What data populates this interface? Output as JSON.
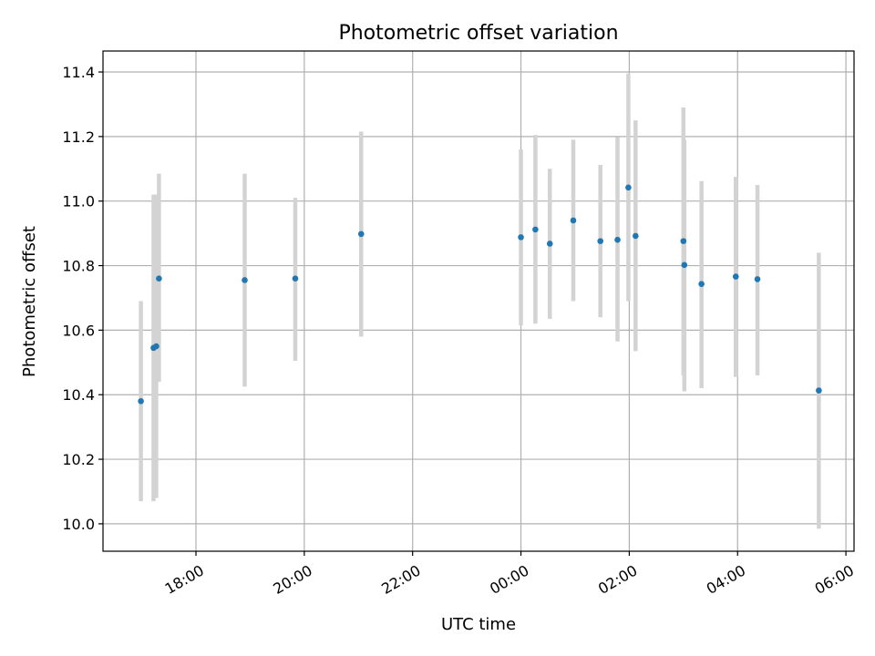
{
  "chart_data": {
    "type": "scatter",
    "title": "Photometric offset variation",
    "xlabel": "UTC time",
    "ylabel": "Photometric offset",
    "x_axis": {
      "kind": "time",
      "range": [
        "2000-01-01T16:17",
        "2000-01-02T06:09"
      ],
      "ticks": [
        {
          "value": "2000-01-01T18:00",
          "label": "18:00"
        },
        {
          "value": "2000-01-01T20:00",
          "label": "20:00"
        },
        {
          "value": "2000-01-01T22:00",
          "label": "22:00"
        },
        {
          "value": "2000-01-02T00:00",
          "label": "00:00"
        },
        {
          "value": "2000-01-02T02:00",
          "label": "02:00"
        },
        {
          "value": "2000-01-02T04:00",
          "label": "04:00"
        },
        {
          "value": "2000-01-02T06:00",
          "label": "06:00"
        }
      ]
    },
    "y_axis": {
      "range": [
        9.915,
        11.465
      ],
      "ticks": [
        10.0,
        10.2,
        10.4,
        10.6,
        10.8,
        11.0,
        11.2,
        11.4
      ],
      "tick_labels": [
        "10.0",
        "10.2",
        "10.4",
        "10.6",
        "10.8",
        "11.0",
        "11.2",
        "11.4"
      ]
    },
    "grid": true,
    "colors": {
      "point": "#1f77b4",
      "errorbar": "#d3d3d3",
      "grid": "#b0b0b0"
    },
    "points": [
      {
        "time": "2000-01-01T16:59",
        "y": 10.38,
        "y_low": 10.07,
        "y_high": 10.69
      },
      {
        "time": "2000-01-01T17:13",
        "y": 10.545,
        "y_low": 10.07,
        "y_high": 11.02
      },
      {
        "time": "2000-01-01T17:16",
        "y": 10.55,
        "y_low": 10.08,
        "y_high": 11.02
      },
      {
        "time": "2000-01-01T17:19",
        "y": 10.76,
        "y_low": 10.44,
        "y_high": 11.085
      },
      {
        "time": "2000-01-01T18:54",
        "y": 10.755,
        "y_low": 10.425,
        "y_high": 11.085
      },
      {
        "time": "2000-01-01T19:50",
        "y": 10.76,
        "y_low": 10.505,
        "y_high": 11.01
      },
      {
        "time": "2000-01-01T21:03",
        "y": 10.898,
        "y_low": 10.58,
        "y_high": 11.215
      },
      {
        "time": "2000-01-02T00:00",
        "y": 10.888,
        "y_low": 10.615,
        "y_high": 11.16
      },
      {
        "time": "2000-01-02T00:16",
        "y": 10.912,
        "y_low": 10.62,
        "y_high": 11.205
      },
      {
        "time": "2000-01-02T00:32",
        "y": 10.868,
        "y_low": 10.635,
        "y_high": 11.1
      },
      {
        "time": "2000-01-02T00:58",
        "y": 10.94,
        "y_low": 10.69,
        "y_high": 11.19
      },
      {
        "time": "2000-01-02T01:28",
        "y": 10.876,
        "y_low": 10.64,
        "y_high": 11.112
      },
      {
        "time": "2000-01-02T01:47",
        "y": 10.88,
        "y_low": 10.565,
        "y_high": 11.198
      },
      {
        "time": "2000-01-02T01:59",
        "y": 11.042,
        "y_low": 10.69,
        "y_high": 11.395
      },
      {
        "time": "2000-01-02T02:07",
        "y": 10.892,
        "y_low": 10.535,
        "y_high": 11.25
      },
      {
        "time": "2000-01-02T03:00",
        "y": 10.876,
        "y_low": 10.46,
        "y_high": 11.29
      },
      {
        "time": "2000-01-02T03:01",
        "y": 10.802,
        "y_low": 10.41,
        "y_high": 11.19
      },
      {
        "time": "2000-01-02T03:20",
        "y": 10.743,
        "y_low": 10.42,
        "y_high": 11.062
      },
      {
        "time": "2000-01-02T03:58",
        "y": 10.766,
        "y_low": 10.455,
        "y_high": 11.075
      },
      {
        "time": "2000-01-02T04:22",
        "y": 10.758,
        "y_low": 10.46,
        "y_high": 11.05
      },
      {
        "time": "2000-01-02T05:30",
        "y": 10.413,
        "y_low": 9.985,
        "y_high": 10.84
      }
    ]
  }
}
